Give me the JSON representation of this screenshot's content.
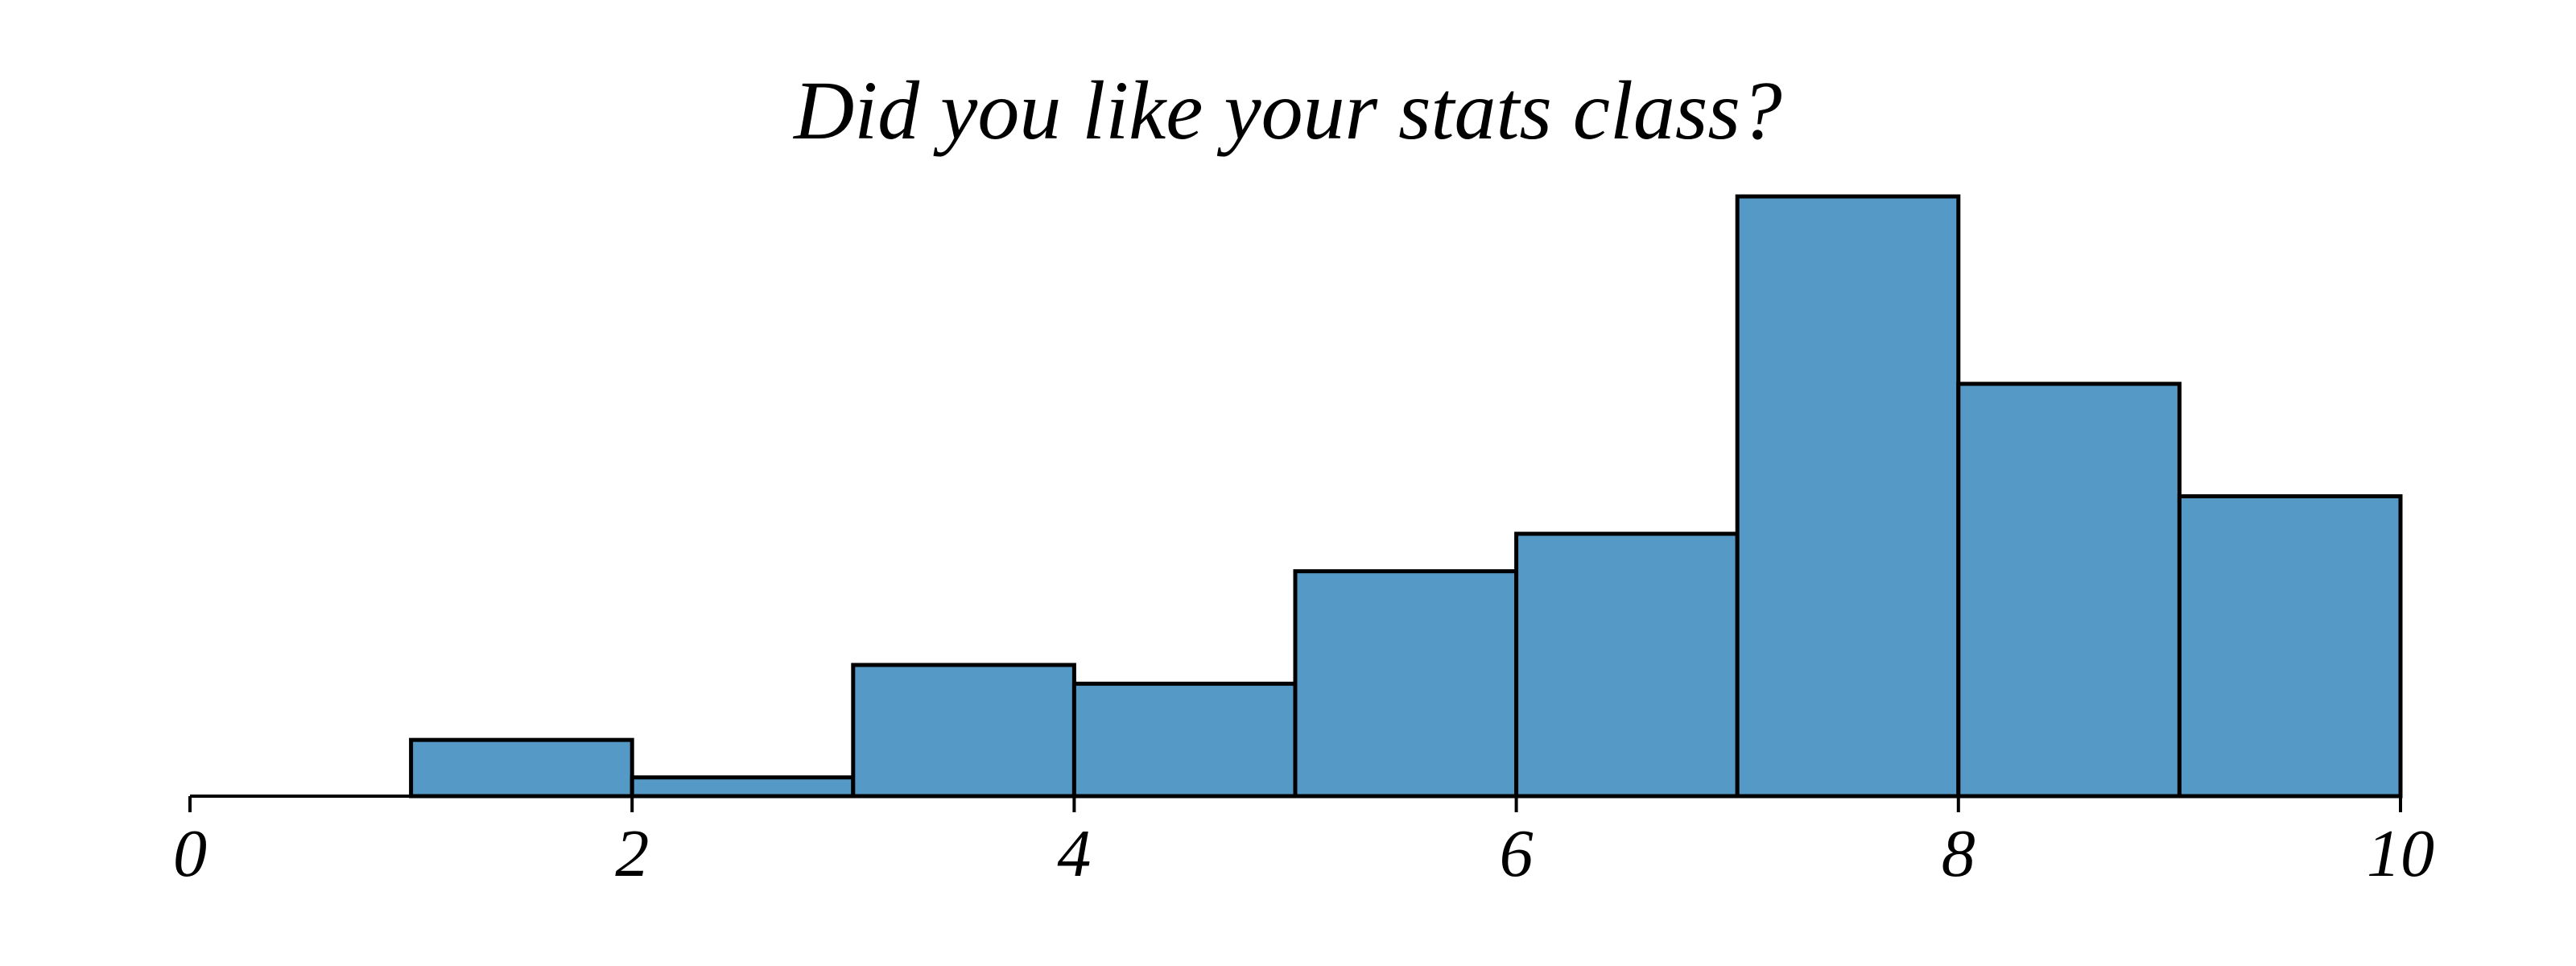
{
  "chart_data": {
    "type": "bar",
    "title": "Did you like your stats class?",
    "xlabel": "",
    "ylabel": "",
    "bins": [
      {
        "start": 0,
        "end": 1,
        "value": 0
      },
      {
        "start": 1,
        "end": 2,
        "value": 1.5
      },
      {
        "start": 2,
        "end": 3,
        "value": 0.5
      },
      {
        "start": 3,
        "end": 4,
        "value": 3.5
      },
      {
        "start": 4,
        "end": 5,
        "value": 3.0
      },
      {
        "start": 5,
        "end": 6,
        "value": 6.0
      },
      {
        "start": 6,
        "end": 7,
        "value": 7.0
      },
      {
        "start": 7,
        "end": 8,
        "value": 16.0
      },
      {
        "start": 8,
        "end": 9,
        "value": 11.0
      },
      {
        "start": 9,
        "end": 10,
        "value": 8.0
      }
    ],
    "xlim": [
      0,
      10
    ],
    "ylim": [
      0,
      16
    ],
    "xticks": [
      "0",
      "2",
      "4",
      "6",
      "8",
      "10"
    ],
    "xtick_values": [
      0,
      2,
      4,
      6,
      8,
      10
    ],
    "show_y_axis": false,
    "grid": false,
    "bar_color": "#5599c6",
    "edge_color": "#000000"
  }
}
